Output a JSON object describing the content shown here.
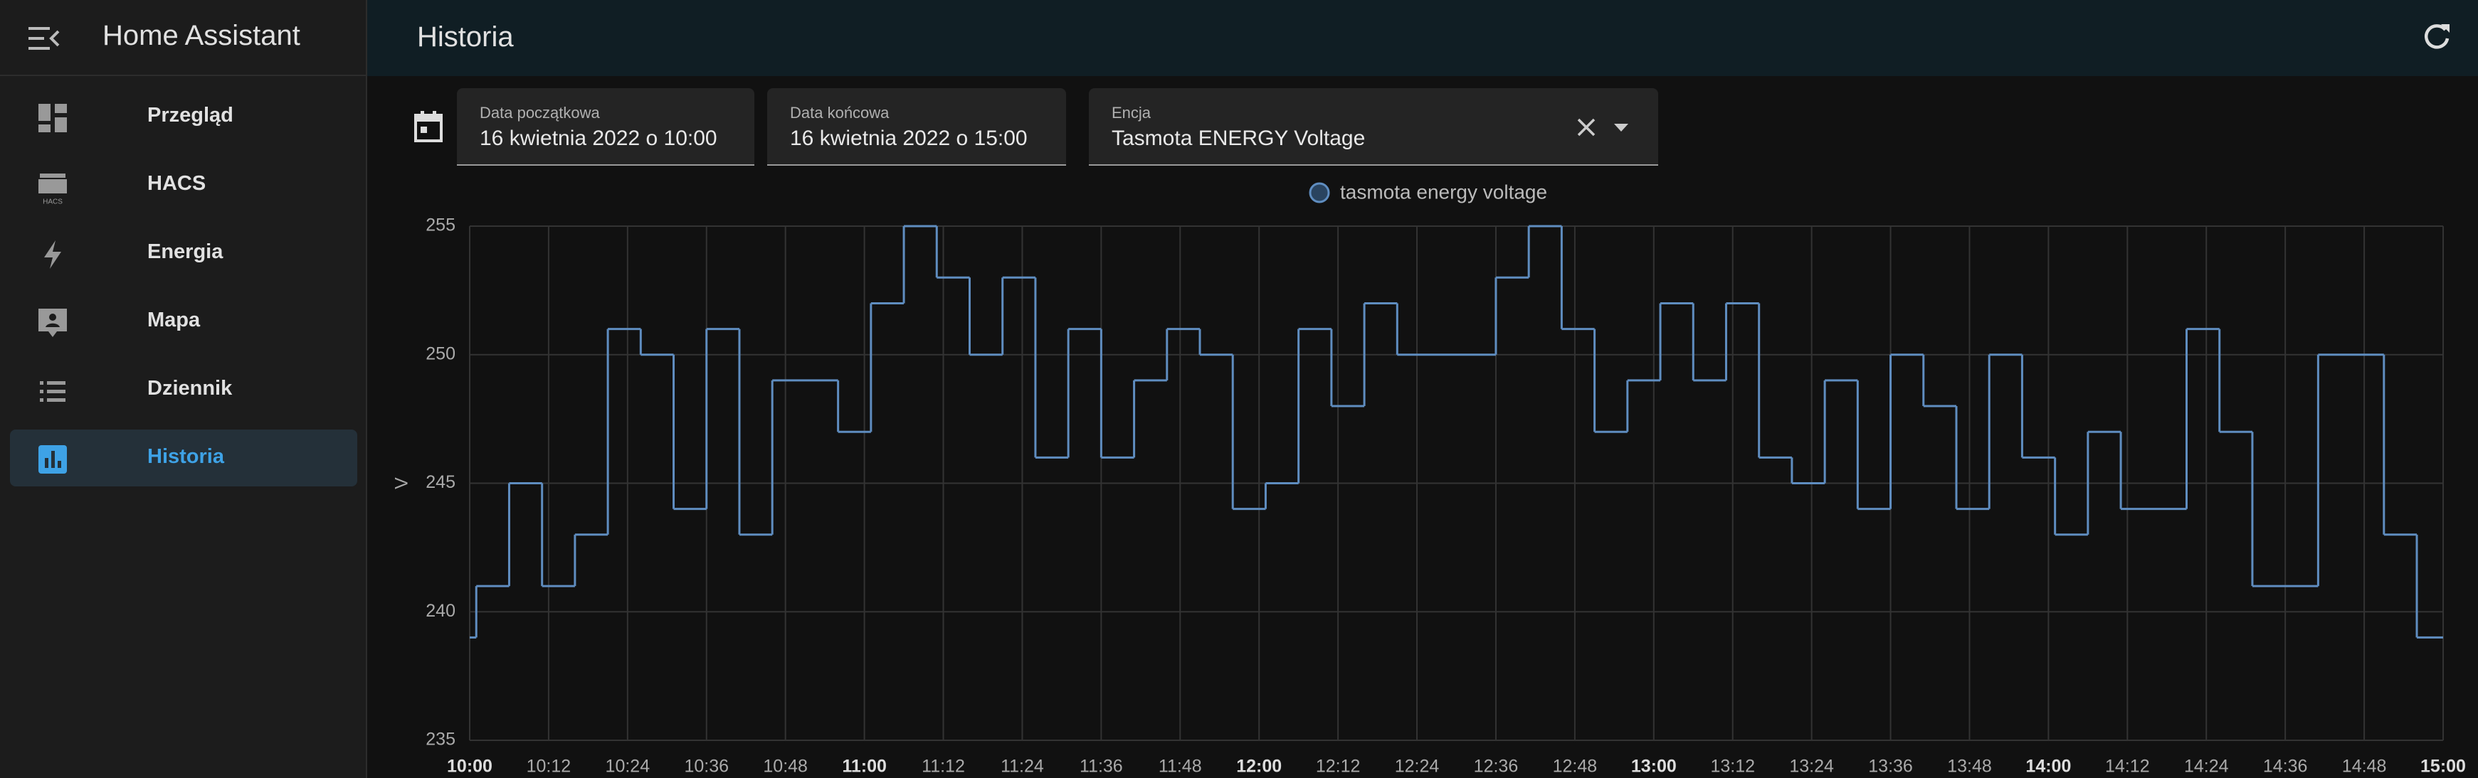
{
  "sidebar": {
    "title": "Home Assistant",
    "items": [
      "Przegląd",
      "HACS",
      "Energia",
      "Mapa",
      "Dziennik",
      "Historia"
    ]
  },
  "header": {
    "title": "Historia"
  },
  "filters": {
    "start_label": "Data początkowa",
    "start_value": "16 kwietnia 2022 o 10:00",
    "end_label": "Data końcowa",
    "end_value": "16 kwietnia 2022 o 15:00",
    "entity_label": "Encja",
    "entity_value": "Tasmota ENERGY Voltage"
  },
  "chart_data": {
    "type": "line",
    "step": true,
    "ylabel": "V",
    "x": [
      "10:00",
      "10:01",
      "10:06",
      "10:11",
      "10:16",
      "10:21",
      "10:26",
      "10:31",
      "10:36",
      "10:41",
      "10:46",
      "10:56",
      "11:01",
      "11:06",
      "11:11",
      "11:16",
      "11:21",
      "11:26",
      "11:31",
      "11:36",
      "11:41",
      "11:46",
      "11:51",
      "11:56",
      "12:01",
      "12:06",
      "12:11",
      "12:16",
      "12:21",
      "12:36",
      "12:41",
      "12:46",
      "12:51",
      "12:56",
      "13:01",
      "13:06",
      "13:11",
      "13:16",
      "13:21",
      "13:26",
      "13:31",
      "13:36",
      "13:41",
      "13:46",
      "13:51",
      "13:56",
      "14:01",
      "14:06",
      "14:11",
      "14:21",
      "14:26",
      "14:31",
      "14:41",
      "14:51",
      "14:56"
    ],
    "series": [
      {
        "name": "tasmota energy voltage",
        "color": "#5f8dc0",
        "values": [
          239,
          241,
          245,
          241,
          243,
          251,
          250,
          244,
          251,
          243,
          249,
          247,
          252,
          255,
          253,
          250,
          253,
          246,
          251,
          246,
          249,
          251,
          250,
          244,
          245,
          251,
          248,
          252,
          250,
          253,
          255,
          251,
          247,
          249,
          252,
          249,
          252,
          246,
          245,
          249,
          244,
          250,
          248,
          244,
          250,
          246,
          243,
          247,
          244,
          251,
          247,
          241,
          250,
          243,
          239
        ]
      }
    ],
    "xlim": [
      "10:00",
      "15:00"
    ],
    "xticks": [
      "10:00",
      "10:12",
      "10:24",
      "10:36",
      "10:48",
      "11:00",
      "11:12",
      "11:24",
      "11:36",
      "11:48",
      "12:00",
      "12:12",
      "12:24",
      "12:36",
      "12:48",
      "13:00",
      "13:12",
      "13:24",
      "13:36",
      "13:48",
      "14:00",
      "14:12",
      "14:24",
      "14:36",
      "14:48",
      "15:00"
    ],
    "ylim": [
      235,
      255
    ],
    "yticks": [
      235,
      240,
      245,
      250,
      255
    ],
    "grid": true
  }
}
